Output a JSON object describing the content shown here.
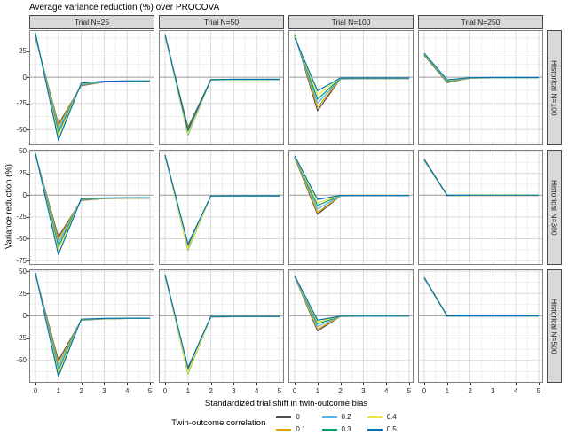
{
  "chart_data": {
    "type": "line",
    "title": "Average variance reduction (%) over PROCOVA",
    "xlabel": "Standardized trial shift in twin-outcome bias",
    "ylabel": "Variance reduction (%)",
    "x": [
      0,
      1,
      2,
      3,
      4,
      5
    ],
    "xticks": [
      0,
      1,
      2,
      3,
      4,
      5
    ],
    "grid": true,
    "col_facets": [
      "Trial N=25",
      "Trial N=50",
      "Trial N=100",
      "Trial N=250"
    ],
    "row_facets": [
      "Historical N=100",
      "Historical N=300",
      "Historical N=500"
    ],
    "legend": {
      "title": "Twin-outcome correlation",
      "position": "bottom",
      "entries": [
        {
          "label": "0",
          "color": "#4d4d4d"
        },
        {
          "label": "0.1",
          "color": "#E69F00"
        },
        {
          "label": "0.2",
          "color": "#56B4E9"
        },
        {
          "label": "0.3",
          "color": "#009E73"
        },
        {
          "label": "0.4",
          "color": "#F0E442"
        },
        {
          "label": "0.5",
          "color": "#0072B2"
        }
      ]
    },
    "rows": [
      {
        "facet": "Historical N=100",
        "ylim": [
          -65,
          45
        ],
        "yticks": [
          25,
          0,
          -25,
          -50
        ]
      },
      {
        "facet": "Historical N=300",
        "ylim": [
          -80,
          52
        ],
        "yticks": [
          50,
          25,
          0,
          -25,
          -50,
          -75
        ]
      },
      {
        "facet": "Historical N=500",
        "ylim": [
          -75,
          52
        ],
        "yticks": [
          50,
          25,
          0,
          -25,
          -50
        ]
      }
    ],
    "panels": [
      {
        "row": 0,
        "col": 0,
        "series": {
          "0": [
            38,
            -45,
            -8.0,
            -4.5,
            -4.0,
            -4.0
          ],
          "0.1": [
            39,
            -47,
            -7.5,
            -4.3,
            -3.8,
            -3.8
          ],
          "0.2": [
            39.5,
            -50,
            -7.0,
            -4.2,
            -3.7,
            -3.7
          ],
          "0.3": [
            40,
            -53,
            -6.5,
            -4.0,
            -3.6,
            -3.6
          ],
          "0.4": [
            41,
            -56,
            -6.0,
            -3.9,
            -3.5,
            -3.5
          ],
          "0.5": [
            42,
            -60,
            -5.5,
            -3.8,
            -3.5,
            -3.5
          ]
        }
      },
      {
        "row": 0,
        "col": 1,
        "series": {
          "0": [
            39,
            -48,
            -2.5,
            -2.2,
            -2.2,
            -2.2
          ],
          "0.1": [
            39,
            -50,
            -2.4,
            -2.1,
            -2.1,
            -2.1
          ],
          "0.2": [
            40,
            -52,
            -2.4,
            -2.1,
            -2.1,
            -2.1
          ],
          "0.3": [
            40,
            -55,
            -2.3,
            -2.0,
            -2.0,
            -2.0
          ],
          "0.4": [
            40,
            -54,
            -2.3,
            -2.0,
            -2.0,
            -2.0
          ],
          "0.5": [
            41,
            -51,
            -2.2,
            -2.0,
            -2.0,
            -2.0
          ]
        }
      },
      {
        "row": 0,
        "col": 2,
        "series": {
          "0": [
            41,
            -32,
            -1.5,
            -1.2,
            -1.2,
            -1.2
          ],
          "0.1": [
            41,
            -29,
            -1.3,
            -1.1,
            -1.1,
            -1.1
          ],
          "0.2": [
            40,
            -25,
            -1.2,
            -1.0,
            -1.0,
            -1.0
          ],
          "0.3": [
            40,
            -21,
            -1.0,
            -0.9,
            -0.9,
            -0.9
          ],
          "0.4": [
            39,
            -17,
            -0.8,
            -0.8,
            -0.8,
            -0.8
          ],
          "0.5": [
            38,
            -13,
            -0.7,
            -0.7,
            -0.7,
            -0.7
          ]
        }
      },
      {
        "row": 0,
        "col": 3,
        "series": {
          "0": [
            21,
            -5.0,
            -0.8,
            -0.6,
            -0.6,
            -0.6
          ],
          "0.1": [
            21.5,
            -4.5,
            -0.7,
            -0.5,
            -0.5,
            -0.5
          ],
          "0.2": [
            22,
            -4.0,
            -0.6,
            -0.5,
            -0.5,
            -0.5
          ],
          "0.3": [
            22,
            -3.5,
            -0.5,
            -0.4,
            -0.4,
            -0.4
          ],
          "0.4": [
            22.5,
            -3.0,
            -0.5,
            -0.4,
            -0.4,
            -0.4
          ],
          "0.5": [
            23,
            -2.5,
            -0.4,
            -0.3,
            -0.3,
            -0.3
          ]
        }
      },
      {
        "row": 1,
        "col": 0,
        "series": {
          "0": [
            46,
            -48,
            -6.0,
            -4.0,
            -3.5,
            -3.5
          ],
          "0.1": [
            46.5,
            -51,
            -5.5,
            -3.8,
            -3.4,
            -3.4
          ],
          "0.2": [
            47,
            -55,
            -5.0,
            -3.6,
            -3.3,
            -3.3
          ],
          "0.3": [
            47,
            -59,
            -4.8,
            -3.5,
            -3.2,
            -3.2
          ],
          "0.4": [
            47.5,
            -63,
            -4.5,
            -3.4,
            -3.1,
            -3.1
          ],
          "0.5": [
            48,
            -68,
            -4.2,
            -3.3,
            -3.0,
            -3.0
          ]
        }
      },
      {
        "row": 1,
        "col": 1,
        "series": {
          "0": [
            45,
            -58,
            -1.2,
            -1.0,
            -1.0,
            -1.0
          ],
          "0.1": [
            45,
            -60,
            -1.1,
            -1.0,
            -1.0,
            -1.0
          ],
          "0.2": [
            45.5,
            -61,
            -1.1,
            -0.9,
            -0.9,
            -0.9
          ],
          "0.3": [
            46,
            -63,
            -1.0,
            -0.9,
            -0.9,
            -0.9
          ],
          "0.4": [
            46,
            -62,
            -1.0,
            -0.9,
            -0.9,
            -0.9
          ],
          "0.5": [
            46,
            -56,
            -1.0,
            -0.8,
            -0.8,
            -0.8
          ]
        }
      },
      {
        "row": 1,
        "col": 2,
        "series": {
          "0": [
            43,
            -22,
            -0.8,
            -0.6,
            -0.6,
            -0.6
          ],
          "0.1": [
            43.5,
            -20,
            -0.7,
            -0.6,
            -0.6,
            -0.6
          ],
          "0.2": [
            44,
            -16,
            -0.6,
            -0.5,
            -0.5,
            -0.5
          ],
          "0.3": [
            44,
            -12,
            -0.5,
            -0.5,
            -0.5,
            -0.5
          ],
          "0.4": [
            44.5,
            -9,
            -0.5,
            -0.4,
            -0.4,
            -0.4
          ],
          "0.5": [
            45,
            -5,
            -0.4,
            -0.4,
            -0.4,
            -0.4
          ]
        }
      },
      {
        "row": 1,
        "col": 3,
        "series": {
          "0": [
            40,
            -0.5,
            -0.3,
            -0.3,
            -0.3,
            -0.3
          ],
          "0.1": [
            40,
            -0.4,
            -0.3,
            -0.3,
            -0.3,
            -0.3
          ],
          "0.2": [
            40.5,
            -0.4,
            -0.2,
            -0.2,
            -0.2,
            -0.2
          ],
          "0.3": [
            40.5,
            -0.3,
            -0.2,
            -0.2,
            -0.2,
            -0.2
          ],
          "0.4": [
            41,
            -0.3,
            -0.2,
            -0.2,
            -0.2,
            -0.2
          ],
          "0.5": [
            41,
            -0.2,
            -0.1,
            -0.1,
            -0.1,
            -0.1
          ]
        }
      },
      {
        "row": 2,
        "col": 0,
        "series": {
          "0": [
            46,
            -50,
            -5.0,
            -3.5,
            -3.0,
            -3.0
          ],
          "0.1": [
            46.5,
            -53,
            -4.8,
            -3.4,
            -3.0,
            -3.0
          ],
          "0.2": [
            47,
            -57,
            -4.5,
            -3.3,
            -2.9,
            -2.9
          ],
          "0.3": [
            47,
            -61,
            -4.2,
            -3.2,
            -2.8,
            -2.8
          ],
          "0.4": [
            47.5,
            -64,
            -4.0,
            -3.1,
            -2.8,
            -2.8
          ],
          "0.5": [
            48,
            -68,
            -3.8,
            -3.0,
            -2.7,
            -2.7
          ]
        }
      },
      {
        "row": 2,
        "col": 1,
        "series": {
          "0": [
            45,
            -60,
            -1.2,
            -1.0,
            -1.0,
            -1.0
          ],
          "0.1": [
            45,
            -62,
            -1.1,
            -1.0,
            -1.0,
            -1.0
          ],
          "0.2": [
            45.5,
            -63,
            -1.1,
            -0.9,
            -0.9,
            -0.9
          ],
          "0.3": [
            46,
            -65,
            -1.0,
            -0.9,
            -0.9,
            -0.9
          ],
          "0.4": [
            46,
            -64,
            -1.0,
            -0.8,
            -0.8,
            -0.8
          ],
          "0.5": [
            46,
            -58,
            -0.9,
            -0.8,
            -0.8,
            -0.8
          ]
        }
      },
      {
        "row": 2,
        "col": 2,
        "series": {
          "0": [
            44,
            -17,
            -0.6,
            -0.5,
            -0.5,
            -0.5
          ],
          "0.1": [
            44,
            -15,
            -0.6,
            -0.5,
            -0.5,
            -0.5
          ],
          "0.2": [
            44.5,
            -12,
            -0.5,
            -0.4,
            -0.4,
            -0.4
          ],
          "0.3": [
            45,
            -9,
            -0.5,
            -0.4,
            -0.4,
            -0.4
          ],
          "0.4": [
            45,
            -7,
            -0.4,
            -0.3,
            -0.3,
            -0.3
          ],
          "0.5": [
            45,
            -5,
            -0.4,
            -0.3,
            -0.3,
            -0.3
          ]
        }
      },
      {
        "row": 2,
        "col": 3,
        "series": {
          "0": [
            42,
            -0.4,
            -0.2,
            -0.2,
            -0.2,
            -0.2
          ],
          "0.1": [
            42,
            -0.4,
            -0.2,
            -0.2,
            -0.2,
            -0.2
          ],
          "0.2": [
            42,
            -0.3,
            -0.2,
            -0.2,
            -0.2,
            -0.2
          ],
          "0.3": [
            42.5,
            -0.3,
            -0.1,
            -0.1,
            -0.1,
            -0.1
          ],
          "0.4": [
            42.5,
            -0.2,
            -0.1,
            -0.1,
            -0.1,
            -0.1
          ],
          "0.5": [
            43,
            -0.2,
            -0.1,
            -0.1,
            -0.1,
            -0.1
          ]
        }
      }
    ],
    "style": {
      "strip_bg": "#d9d9d9",
      "strip_border": "#4a4a4a",
      "panel_border": "#808080",
      "grid_major": "#d9d9d9",
      "grid_minor": "#efefef",
      "zero_line": "#9a9a9a"
    }
  }
}
